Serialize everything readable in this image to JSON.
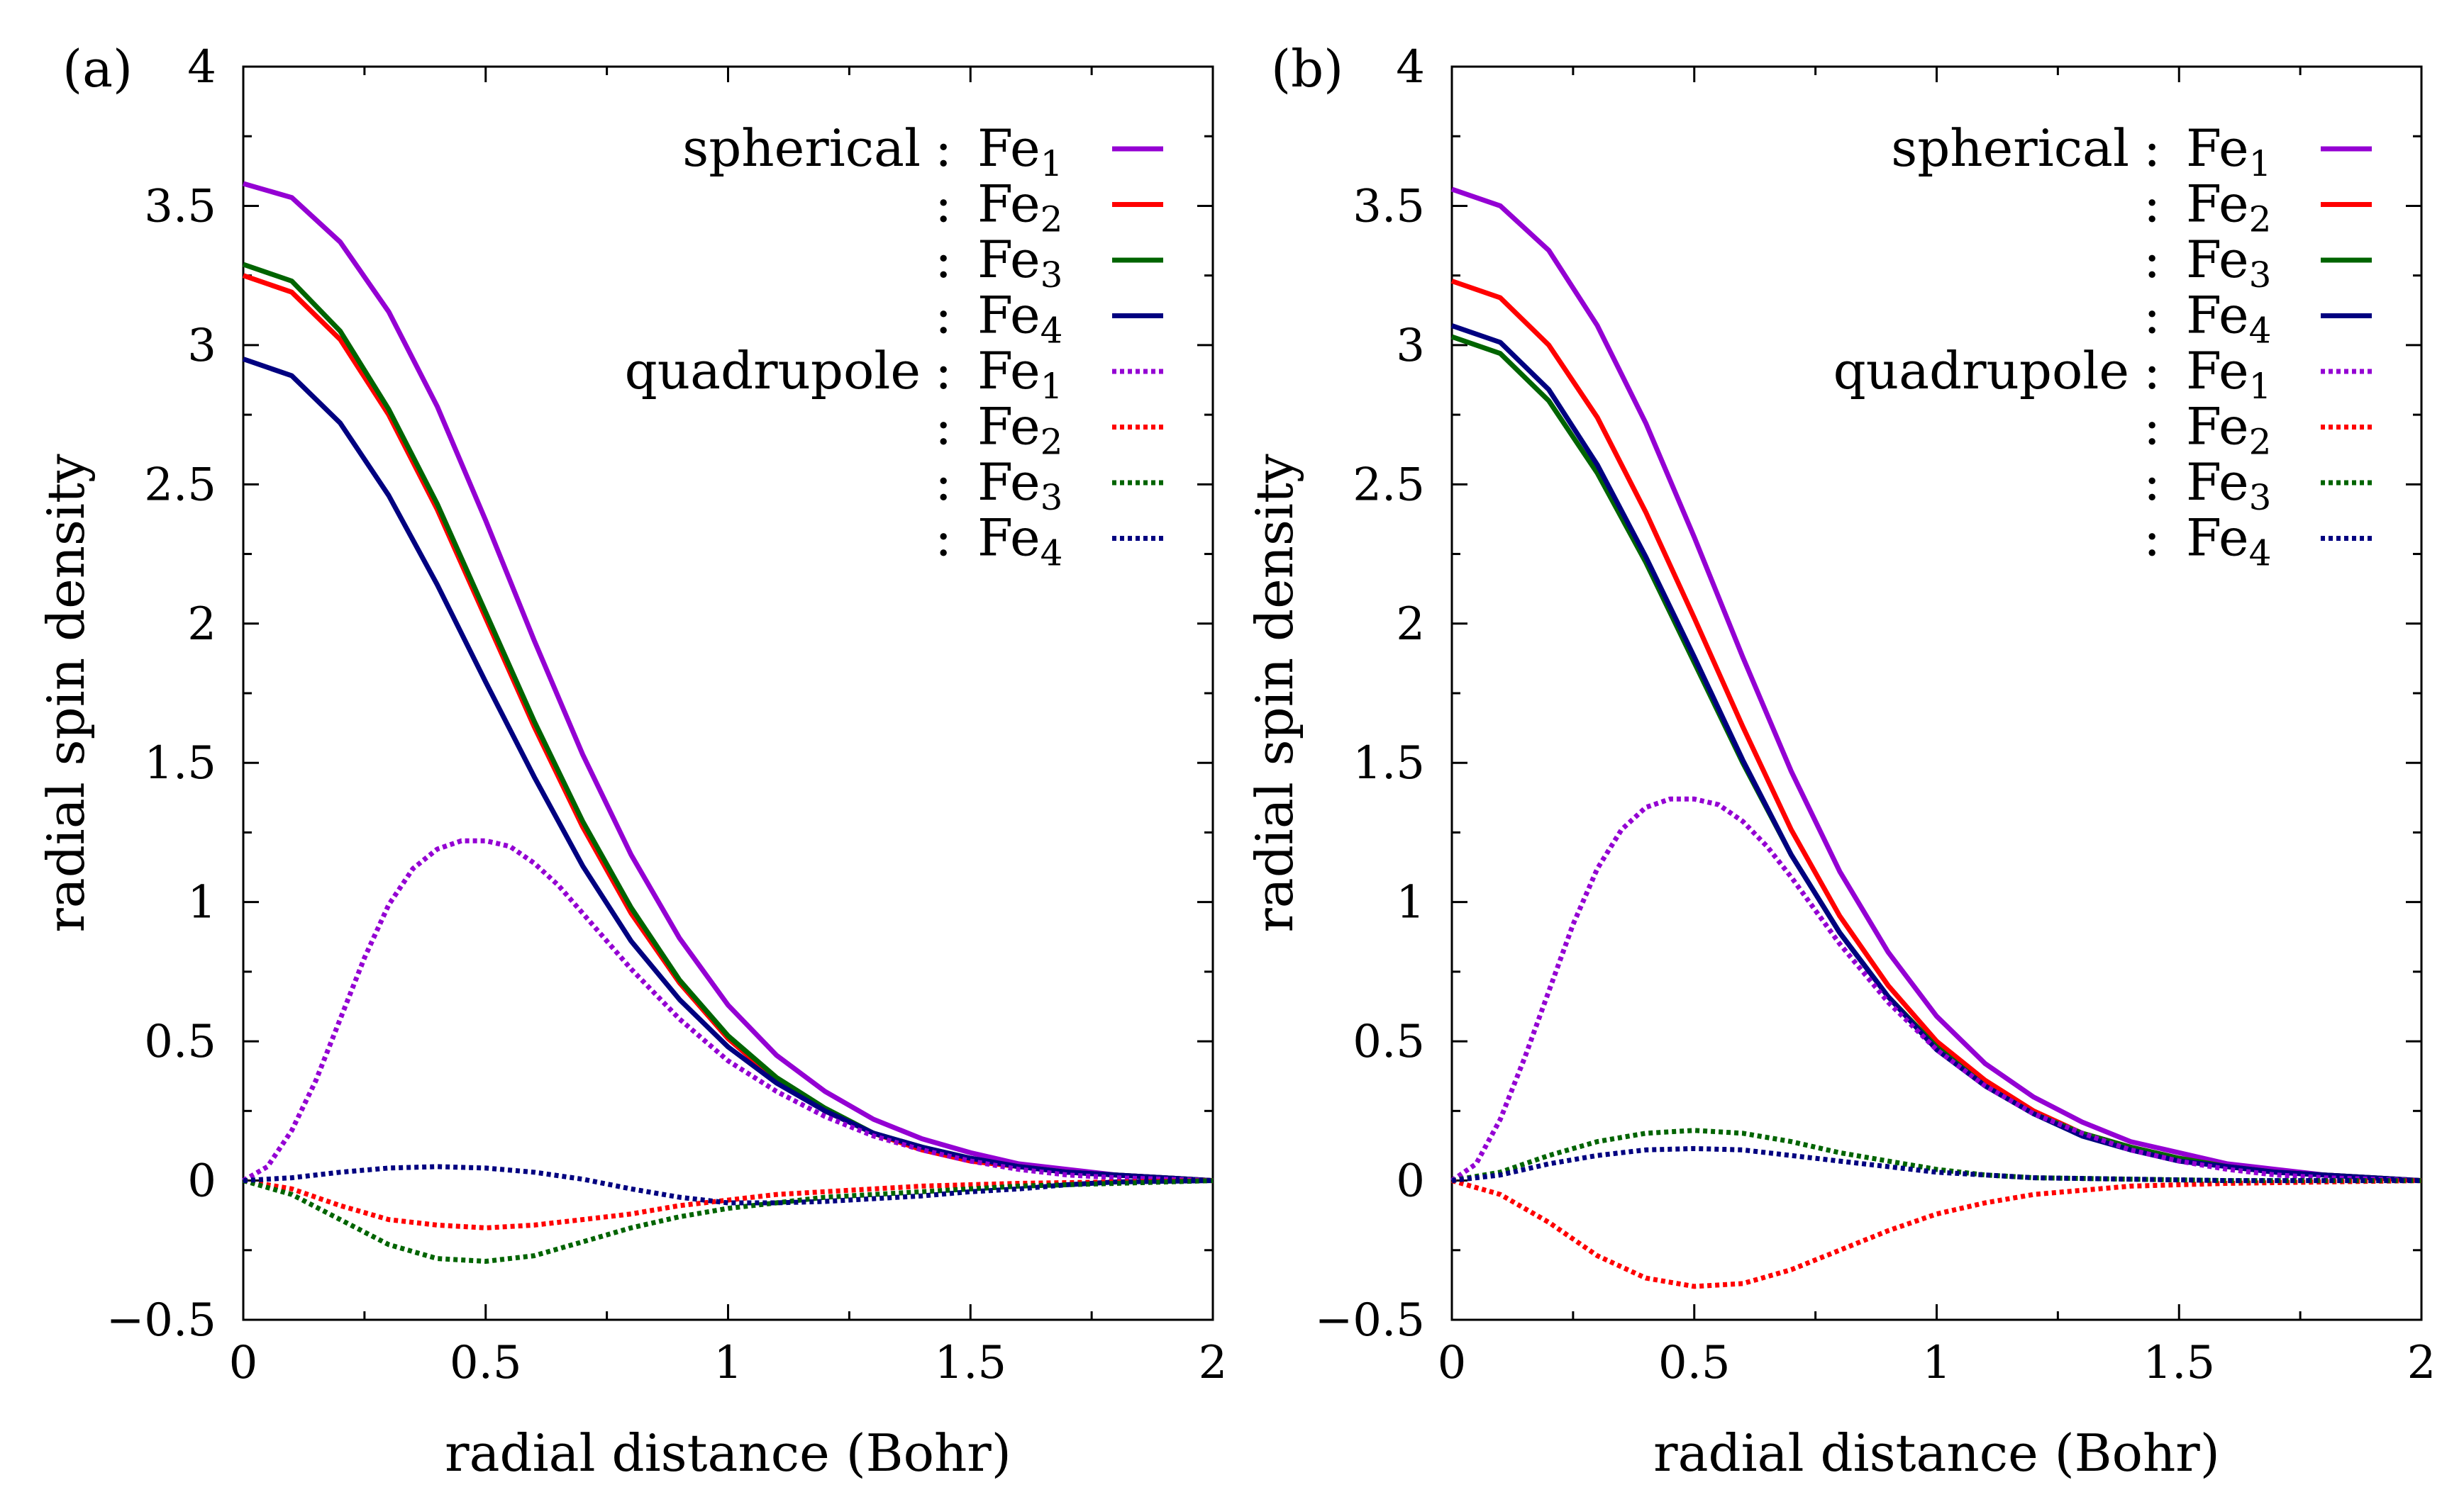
{
  "chart_data": [
    {
      "type": "line",
      "panel_label": "(a)",
      "xlabel": "radial distance (Bohr)",
      "ylabel": "radial spin density",
      "xlim": [
        0,
        2
      ],
      "ylim": [
        -0.5,
        4
      ],
      "xticks": [
        "0",
        "0.5",
        "1",
        "1.5",
        "2"
      ],
      "yticks": [
        "−0.5",
        "0",
        "0.5",
        "1",
        "1.5",
        "2",
        "2.5",
        "3",
        "3.5",
        "4"
      ],
      "legend_position": "top-right",
      "series": [
        {
          "group": "spherical",
          "atom": "Fe",
          "sub": "1",
          "color": "#9400d3",
          "style": "solid",
          "x": [
            0,
            0.1,
            0.2,
            0.3,
            0.4,
            0.5,
            0.6,
            0.7,
            0.8,
            0.9,
            1.0,
            1.1,
            1.2,
            1.3,
            1.4,
            1.5,
            1.6,
            1.7,
            1.8,
            1.9,
            2.0
          ],
          "y": [
            3.58,
            3.53,
            3.37,
            3.12,
            2.78,
            2.37,
            1.94,
            1.53,
            1.17,
            0.87,
            0.63,
            0.45,
            0.32,
            0.22,
            0.15,
            0.1,
            0.06,
            0.04,
            0.02,
            0.01,
            0.0
          ]
        },
        {
          "group": "",
          "atom": "Fe",
          "sub": "2",
          "color": "#ff0000",
          "style": "solid",
          "x": [
            0,
            0.1,
            0.2,
            0.3,
            0.4,
            0.5,
            0.6,
            0.7,
            0.8,
            0.9,
            1.0,
            1.1,
            1.2,
            1.3,
            1.4,
            1.5,
            1.6,
            1.7,
            1.8,
            1.9,
            2.0
          ],
          "y": [
            3.25,
            3.19,
            3.02,
            2.75,
            2.41,
            2.02,
            1.63,
            1.27,
            0.96,
            0.71,
            0.51,
            0.36,
            0.25,
            0.17,
            0.11,
            0.07,
            0.05,
            0.03,
            0.02,
            0.01,
            0.0
          ]
        },
        {
          "group": "",
          "atom": "Fe",
          "sub": "3",
          "color": "#006400",
          "style": "solid",
          "x": [
            0,
            0.1,
            0.2,
            0.3,
            0.4,
            0.5,
            0.6,
            0.7,
            0.8,
            0.9,
            1.0,
            1.1,
            1.2,
            1.3,
            1.4,
            1.5,
            1.6,
            1.7,
            1.8,
            1.9,
            2.0
          ],
          "y": [
            3.29,
            3.23,
            3.05,
            2.77,
            2.43,
            2.04,
            1.65,
            1.29,
            0.98,
            0.72,
            0.52,
            0.37,
            0.26,
            0.17,
            0.12,
            0.08,
            0.05,
            0.03,
            0.02,
            0.01,
            0.0
          ]
        },
        {
          "group": "",
          "atom": "Fe",
          "sub": "4",
          "color": "#000080",
          "style": "solid",
          "x": [
            0,
            0.1,
            0.2,
            0.3,
            0.4,
            0.5,
            0.6,
            0.7,
            0.8,
            0.9,
            1.0,
            1.1,
            1.2,
            1.3,
            1.4,
            1.5,
            1.6,
            1.7,
            1.8,
            1.9,
            2.0
          ],
          "y": [
            2.95,
            2.89,
            2.72,
            2.46,
            2.14,
            1.79,
            1.45,
            1.13,
            0.86,
            0.65,
            0.48,
            0.35,
            0.25,
            0.17,
            0.12,
            0.08,
            0.05,
            0.03,
            0.02,
            0.01,
            0.0
          ]
        },
        {
          "group": "quadrupole",
          "atom": "Fe",
          "sub": "1",
          "color": "#9400d3",
          "style": "dotted",
          "x": [
            0,
            0.05,
            0.1,
            0.15,
            0.2,
            0.25,
            0.3,
            0.35,
            0.4,
            0.45,
            0.5,
            0.55,
            0.6,
            0.65,
            0.7,
            0.75,
            0.8,
            0.9,
            1.0,
            1.1,
            1.2,
            1.3,
            1.4,
            1.5,
            1.6,
            1.7,
            1.8,
            2.0
          ],
          "y": [
            0.0,
            0.05,
            0.18,
            0.36,
            0.58,
            0.8,
            0.99,
            1.12,
            1.19,
            1.22,
            1.22,
            1.2,
            1.14,
            1.06,
            0.96,
            0.86,
            0.76,
            0.58,
            0.43,
            0.32,
            0.23,
            0.16,
            0.11,
            0.07,
            0.04,
            0.02,
            0.01,
            0.0
          ]
        },
        {
          "group": "",
          "atom": "Fe",
          "sub": "2",
          "color": "#ff0000",
          "style": "dotted",
          "x": [
            0,
            0.1,
            0.2,
            0.3,
            0.4,
            0.5,
            0.6,
            0.7,
            0.8,
            0.9,
            1.0,
            1.1,
            1.2,
            1.4,
            1.6,
            1.8,
            2.0
          ],
          "y": [
            0.0,
            -0.03,
            -0.09,
            -0.14,
            -0.16,
            -0.17,
            -0.16,
            -0.14,
            -0.12,
            -0.09,
            -0.07,
            -0.05,
            -0.04,
            -0.02,
            -0.01,
            -0.005,
            0.0
          ]
        },
        {
          "group": "",
          "atom": "Fe",
          "sub": "3",
          "color": "#006400",
          "style": "dotted",
          "x": [
            0,
            0.1,
            0.2,
            0.3,
            0.4,
            0.5,
            0.6,
            0.7,
            0.8,
            0.9,
            1.0,
            1.1,
            1.2,
            1.4,
            1.6,
            1.8,
            2.0
          ],
          "y": [
            0.0,
            -0.05,
            -0.14,
            -0.23,
            -0.28,
            -0.29,
            -0.27,
            -0.22,
            -0.17,
            -0.13,
            -0.1,
            -0.08,
            -0.06,
            -0.04,
            -0.02,
            -0.01,
            0.0
          ]
        },
        {
          "group": "",
          "atom": "Fe",
          "sub": "4",
          "color": "#000080",
          "style": "dotted",
          "x": [
            0,
            0.1,
            0.2,
            0.3,
            0.4,
            0.5,
            0.6,
            0.7,
            0.8,
            0.9,
            1.0,
            1.1,
            1.2,
            1.3,
            1.4,
            1.5,
            1.6,
            1.7,
            1.8,
            2.0
          ],
          "y": [
            0.0,
            0.01,
            0.03,
            0.045,
            0.05,
            0.045,
            0.03,
            0.005,
            -0.03,
            -0.06,
            -0.08,
            -0.08,
            -0.075,
            -0.065,
            -0.055,
            -0.04,
            -0.03,
            -0.015,
            -0.005,
            0.0
          ]
        }
      ]
    },
    {
      "type": "line",
      "panel_label": "(b)",
      "xlabel": "radial distance (Bohr)",
      "ylabel": "radial spin density",
      "xlim": [
        0,
        2
      ],
      "ylim": [
        -0.5,
        4
      ],
      "xticks": [
        "0",
        "0.5",
        "1",
        "1.5",
        "2"
      ],
      "yticks": [
        "−0.5",
        "0",
        "0.5",
        "1",
        "1.5",
        "2",
        "2.5",
        "3",
        "3.5",
        "4"
      ],
      "legend_position": "top-right",
      "series": [
        {
          "group": "spherical",
          "atom": "Fe",
          "sub": "1",
          "color": "#9400d3",
          "style": "solid",
          "x": [
            0,
            0.1,
            0.2,
            0.3,
            0.4,
            0.5,
            0.6,
            0.7,
            0.8,
            0.9,
            1.0,
            1.1,
            1.2,
            1.3,
            1.4,
            1.5,
            1.6,
            1.7,
            1.8,
            1.9,
            2.0
          ],
          "y": [
            3.56,
            3.5,
            3.34,
            3.07,
            2.72,
            2.31,
            1.88,
            1.47,
            1.11,
            0.82,
            0.59,
            0.42,
            0.3,
            0.21,
            0.14,
            0.1,
            0.06,
            0.04,
            0.02,
            0.01,
            0.0
          ]
        },
        {
          "group": "",
          "atom": "Fe",
          "sub": "2",
          "color": "#ff0000",
          "style": "solid",
          "x": [
            0,
            0.1,
            0.2,
            0.3,
            0.4,
            0.5,
            0.6,
            0.7,
            0.8,
            0.9,
            1.0,
            1.1,
            1.2,
            1.3,
            1.4,
            1.5,
            1.6,
            1.7,
            1.8,
            1.9,
            2.0
          ],
          "y": [
            3.23,
            3.17,
            3.0,
            2.74,
            2.4,
            2.02,
            1.63,
            1.26,
            0.95,
            0.7,
            0.5,
            0.36,
            0.25,
            0.17,
            0.12,
            0.08,
            0.05,
            0.03,
            0.02,
            0.01,
            0.0
          ]
        },
        {
          "group": "",
          "atom": "Fe",
          "sub": "3",
          "color": "#006400",
          "style": "solid",
          "x": [
            0,
            0.1,
            0.2,
            0.3,
            0.4,
            0.5,
            0.6,
            0.7,
            0.8,
            0.9,
            1.0,
            1.1,
            1.2,
            1.3,
            1.4,
            1.5,
            1.6,
            1.7,
            1.8,
            1.9,
            2.0
          ],
          "y": [
            3.03,
            2.97,
            2.8,
            2.54,
            2.22,
            1.86,
            1.5,
            1.17,
            0.89,
            0.66,
            0.48,
            0.34,
            0.24,
            0.17,
            0.12,
            0.08,
            0.05,
            0.03,
            0.02,
            0.01,
            0.0
          ]
        },
        {
          "group": "",
          "atom": "Fe",
          "sub": "4",
          "color": "#000080",
          "style": "solid",
          "x": [
            0,
            0.1,
            0.2,
            0.3,
            0.4,
            0.5,
            0.6,
            0.7,
            0.8,
            0.9,
            1.0,
            1.1,
            1.2,
            1.3,
            1.4,
            1.5,
            1.6,
            1.7,
            1.8,
            1.9,
            2.0
          ],
          "y": [
            3.07,
            3.01,
            2.84,
            2.57,
            2.24,
            1.88,
            1.51,
            1.17,
            0.89,
            0.66,
            0.47,
            0.34,
            0.24,
            0.16,
            0.11,
            0.07,
            0.05,
            0.03,
            0.02,
            0.01,
            0.0
          ]
        },
        {
          "group": "quadrupole",
          "atom": "Fe",
          "sub": "1",
          "color": "#9400d3",
          "style": "dotted",
          "x": [
            0,
            0.05,
            0.1,
            0.15,
            0.2,
            0.25,
            0.3,
            0.35,
            0.4,
            0.45,
            0.5,
            0.55,
            0.6,
            0.65,
            0.7,
            0.75,
            0.8,
            0.9,
            1.0,
            1.1,
            1.2,
            1.3,
            1.4,
            1.5,
            1.6,
            1.7,
            1.8,
            2.0
          ],
          "y": [
            0.0,
            0.06,
            0.22,
            0.44,
            0.68,
            0.92,
            1.12,
            1.26,
            1.34,
            1.37,
            1.37,
            1.35,
            1.29,
            1.2,
            1.09,
            0.97,
            0.85,
            0.64,
            0.47,
            0.34,
            0.24,
            0.17,
            0.11,
            0.07,
            0.04,
            0.02,
            0.01,
            0.0
          ]
        },
        {
          "group": "",
          "atom": "Fe",
          "sub": "2",
          "color": "#ff0000",
          "style": "dotted",
          "x": [
            0,
            0.1,
            0.2,
            0.3,
            0.4,
            0.5,
            0.6,
            0.7,
            0.8,
            0.9,
            1.0,
            1.1,
            1.2,
            1.4,
            1.6,
            1.8,
            2.0
          ],
          "y": [
            0.0,
            -0.05,
            -0.15,
            -0.27,
            -0.35,
            -0.38,
            -0.37,
            -0.32,
            -0.25,
            -0.18,
            -0.12,
            -0.08,
            -0.05,
            -0.02,
            -0.01,
            -0.005,
            0.0
          ]
        },
        {
          "group": "",
          "atom": "Fe",
          "sub": "3",
          "color": "#006400",
          "style": "dotted",
          "x": [
            0,
            0.1,
            0.2,
            0.3,
            0.4,
            0.5,
            0.6,
            0.7,
            0.8,
            0.9,
            1.0,
            1.1,
            1.2,
            1.4,
            1.6,
            1.8,
            2.0
          ],
          "y": [
            0.0,
            0.03,
            0.09,
            0.14,
            0.17,
            0.18,
            0.17,
            0.14,
            0.1,
            0.07,
            0.04,
            0.02,
            0.01,
            0.005,
            0.0,
            0.0,
            0.0
          ]
        },
        {
          "group": "",
          "atom": "Fe",
          "sub": "4",
          "color": "#000080",
          "style": "dotted",
          "x": [
            0,
            0.1,
            0.2,
            0.3,
            0.4,
            0.5,
            0.6,
            0.7,
            0.8,
            0.9,
            1.0,
            1.1,
            1.2,
            1.4,
            1.6,
            1.8,
            2.0
          ],
          "y": [
            0.0,
            0.02,
            0.06,
            0.09,
            0.11,
            0.115,
            0.11,
            0.09,
            0.07,
            0.05,
            0.03,
            0.02,
            0.01,
            0.005,
            0.0,
            0.0,
            0.0
          ]
        }
      ]
    }
  ]
}
